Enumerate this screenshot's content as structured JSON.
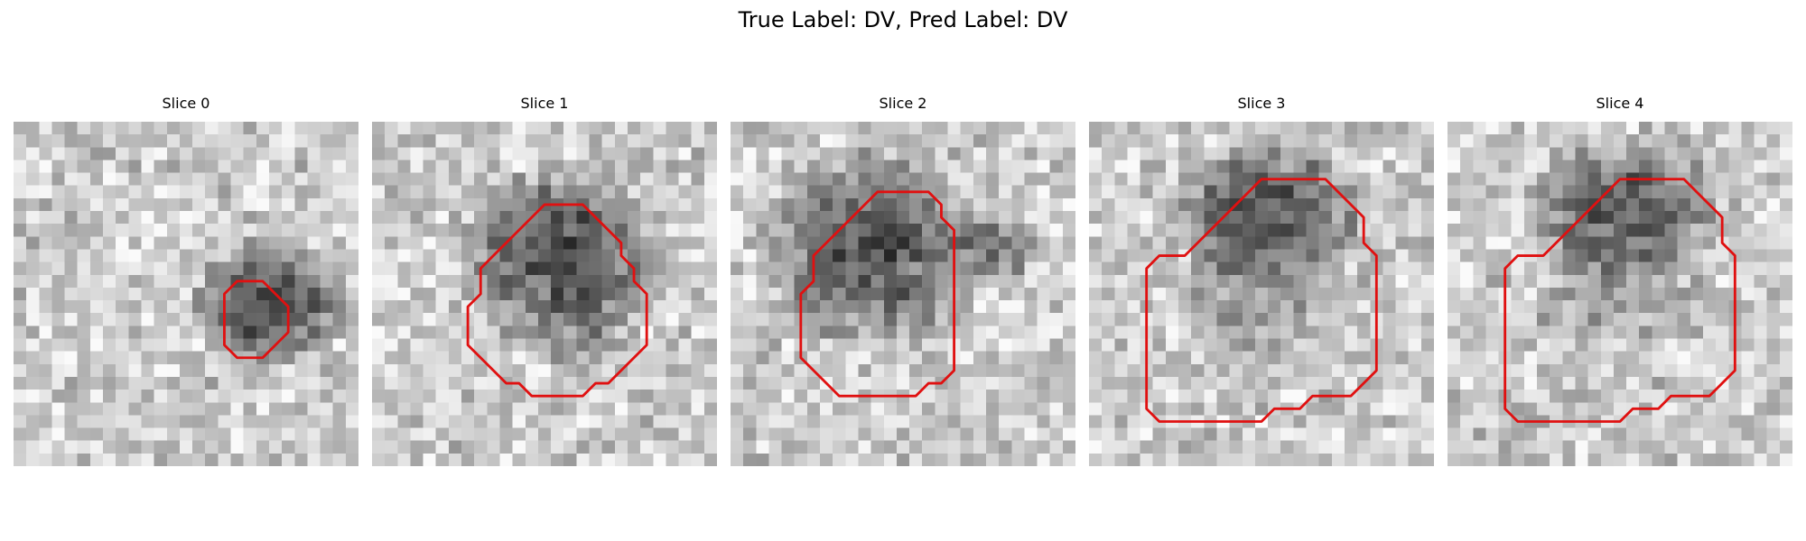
{
  "figure": {
    "title": "True Label: DV, Pred Label: DV"
  },
  "panels": [
    {
      "title": "Slice 0",
      "contour": [
        [
          16,
          12
        ],
        [
          16,
          9
        ],
        [
          17,
          8
        ],
        [
          18,
          8
        ],
        [
          19,
          8
        ],
        [
          20,
          9
        ],
        [
          21,
          10
        ],
        [
          21,
          12
        ],
        [
          20,
          13
        ],
        [
          19,
          14
        ],
        [
          17,
          14
        ],
        [
          16,
          13
        ]
      ],
      "blob": {
        "cx": 19.5,
        "cy": 13.5,
        "rx": 6.5,
        "ry": 5.5,
        "depth": 130
      },
      "extra": [],
      "seed": 11
    },
    {
      "title": "Slice 1",
      "contour": [
        [
          9,
          6
        ],
        [
          10,
          5
        ],
        [
          11,
          4
        ],
        [
          12,
          3
        ],
        [
          13,
          2
        ],
        [
          16,
          2
        ],
        [
          17,
          3
        ],
        [
          18,
          4
        ],
        [
          19,
          5
        ],
        [
          19,
          6
        ],
        [
          20,
          7
        ],
        [
          20,
          8
        ],
        [
          21,
          9
        ],
        [
          21,
          13
        ],
        [
          20,
          14
        ],
        [
          19,
          15
        ],
        [
          18,
          16
        ],
        [
          17,
          16
        ],
        [
          16,
          17
        ],
        [
          12,
          17
        ],
        [
          11,
          16
        ],
        [
          10,
          16
        ],
        [
          9,
          15
        ],
        [
          8,
          14
        ],
        [
          7,
          13
        ],
        [
          7,
          10
        ],
        [
          8,
          9
        ],
        [
          8,
          7
        ]
      ],
      "blob": {
        "cx": 14.5,
        "cy": 10.5,
        "rx": 8.5,
        "ry": 8.5,
        "depth": 120
      },
      "extra": [],
      "seed": 23
    },
    {
      "title": "Slice 2",
      "contour": [
        [
          6,
          6
        ],
        [
          7,
          5
        ],
        [
          8,
          4
        ],
        [
          9,
          3
        ],
        [
          10,
          2
        ],
        [
          11,
          1
        ],
        [
          15,
          1
        ],
        [
          16,
          2
        ],
        [
          16,
          3
        ],
        [
          17,
          4
        ],
        [
          17,
          15
        ],
        [
          16,
          16
        ],
        [
          15,
          16
        ],
        [
          14,
          17
        ],
        [
          11,
          17
        ],
        [
          8,
          17
        ],
        [
          7,
          16
        ],
        [
          6,
          15
        ],
        [
          5,
          14
        ],
        [
          5,
          12
        ],
        [
          5,
          9
        ],
        [
          6,
          8
        ]
      ],
      "blob": {
        "cx": 10.5,
        "cy": 9.5,
        "rx": 9.5,
        "ry": 8.5,
        "depth": 115
      },
      "extra": [
        {
          "cx": 20.5,
          "cy": 9.5,
          "rx": 3.5,
          "ry": 3.5,
          "depth": 70
        }
      ],
      "seed": 37
    },
    {
      "title": "Slice 3",
      "contour": [
        [
          7,
          6
        ],
        [
          8,
          5
        ],
        [
          9,
          4
        ],
        [
          10,
          3
        ],
        [
          11,
          2
        ],
        [
          12,
          1
        ],
        [
          13,
          0
        ],
        [
          18,
          0
        ],
        [
          19,
          1
        ],
        [
          20,
          2
        ],
        [
          21,
          3
        ],
        [
          21,
          5
        ],
        [
          22,
          6
        ],
        [
          22,
          15
        ],
        [
          21,
          16
        ],
        [
          20,
          17
        ],
        [
          17,
          17
        ],
        [
          16,
          18
        ],
        [
          14,
          18
        ],
        [
          13,
          19
        ],
        [
          5,
          19
        ],
        [
          4,
          18
        ],
        [
          4,
          7
        ],
        [
          5,
          6
        ]
      ],
      "blob": {
        "cx": 13.5,
        "cy": 6.5,
        "rx": 8.5,
        "ry": 6.0,
        "depth": 120
      },
      "extra": [
        {
          "cx": 12.5,
          "cy": 13.5,
          "rx": 8.0,
          "ry": 5.0,
          "depth": 45
        }
      ],
      "seed": 53
    },
    {
      "title": "Slice 4",
      "contour": [
        [
          7,
          6
        ],
        [
          8,
          5
        ],
        [
          9,
          4
        ],
        [
          10,
          3
        ],
        [
          11,
          2
        ],
        [
          12,
          1
        ],
        [
          13,
          0
        ],
        [
          18,
          0
        ],
        [
          19,
          1
        ],
        [
          20,
          2
        ],
        [
          21,
          3
        ],
        [
          21,
          5
        ],
        [
          22,
          6
        ],
        [
          22,
          15
        ],
        [
          21,
          16
        ],
        [
          20,
          17
        ],
        [
          17,
          17
        ],
        [
          16,
          18
        ],
        [
          14,
          18
        ],
        [
          13,
          19
        ],
        [
          5,
          19
        ],
        [
          4,
          18
        ],
        [
          4,
          7
        ],
        [
          5,
          6
        ]
      ],
      "blob": {
        "cx": 13.5,
        "cy": 6.5,
        "rx": 8.5,
        "ry": 6.0,
        "depth": 115
      },
      "extra": [
        {
          "cx": 12.5,
          "cy": 13.5,
          "rx": 8.0,
          "ry": 5.0,
          "depth": 40
        }
      ],
      "seed": 71
    }
  ],
  "colors": {
    "contour": "#e01010"
  },
  "grid_size": 27
}
